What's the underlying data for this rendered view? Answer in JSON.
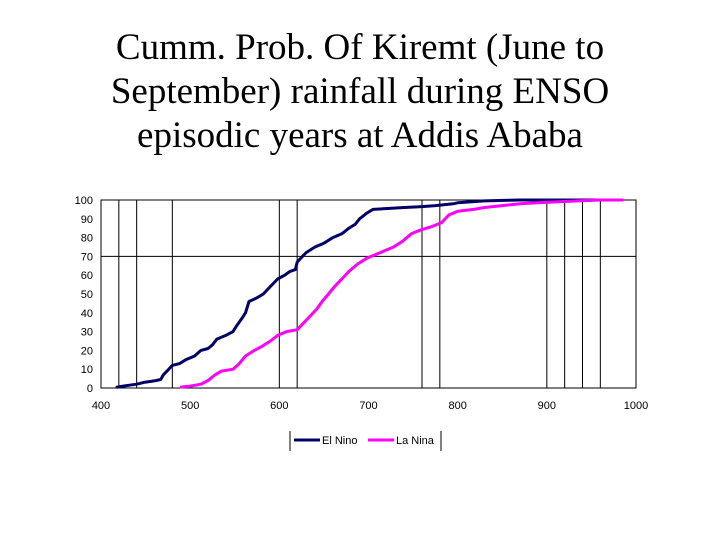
{
  "slide": {
    "title_lines": [
      "Cumm. Prob. Of Kiremt (June to",
      "September) rainfall during ENSO",
      "episodic years at Addis Ababa"
    ]
  },
  "chart_data": {
    "type": "line",
    "title": "Cumm. Prob. Of Kiremt (June to September) rainfall during ENSO episodic years at Addis Ababa",
    "xlabel": "",
    "ylabel": "",
    "xlim": [
      400,
      1000
    ],
    "ylim": [
      0,
      100
    ],
    "x_ticks": [
      400,
      500,
      600,
      700,
      800,
      900,
      1000
    ],
    "y_ticks": [
      0,
      10,
      20,
      30,
      40,
      50,
      60,
      70,
      80,
      90,
      100
    ],
    "grid_vertical_x": [
      420,
      440,
      480,
      600,
      620,
      760,
      780,
      900,
      920,
      940,
      960
    ],
    "grid_horizontal_y": [
      70
    ],
    "legend_position": "bottom",
    "series": [
      {
        "name": "El Nino",
        "color": "#000066",
        "points": [
          [
            418,
            0.5
          ],
          [
            425,
            1
          ],
          [
            432,
            1.5
          ],
          [
            440,
            2
          ],
          [
            448,
            3
          ],
          [
            456,
            3.5
          ],
          [
            462,
            4
          ],
          [
            467,
            4.5
          ],
          [
            470,
            7
          ],
          [
            474,
            9
          ],
          [
            480,
            12
          ],
          [
            488,
            13
          ],
          [
            495,
            15
          ],
          [
            505,
            17
          ],
          [
            512,
            20
          ],
          [
            520,
            21
          ],
          [
            525,
            23
          ],
          [
            530,
            26
          ],
          [
            540,
            28
          ],
          [
            548,
            30
          ],
          [
            552,
            33
          ],
          [
            558,
            37
          ],
          [
            562,
            40
          ],
          [
            566,
            46
          ],
          [
            575,
            48
          ],
          [
            582,
            50
          ],
          [
            590,
            54
          ],
          [
            598,
            58
          ],
          [
            606,
            60
          ],
          [
            612,
            62
          ],
          [
            618,
            63
          ],
          [
            620,
            67
          ],
          [
            630,
            72
          ],
          [
            640,
            75
          ],
          [
            650,
            77
          ],
          [
            660,
            80
          ],
          [
            670,
            82
          ],
          [
            678,
            85
          ],
          [
            685,
            87
          ],
          [
            690,
            90
          ],
          [
            698,
            93
          ],
          [
            705,
            95
          ],
          [
            740,
            96
          ],
          [
            760,
            96.5
          ],
          [
            775,
            97
          ],
          [
            795,
            98
          ],
          [
            800,
            98.5
          ],
          [
            830,
            99.5
          ],
          [
            870,
            100
          ],
          [
            980,
            100
          ]
        ]
      },
      {
        "name": "La Nina",
        "color": "#ff00ff",
        "points": [
          [
            490,
            0.5
          ],
          [
            500,
            1
          ],
          [
            512,
            2
          ],
          [
            520,
            4
          ],
          [
            528,
            7
          ],
          [
            535,
            9
          ],
          [
            548,
            10
          ],
          [
            555,
            13
          ],
          [
            562,
            17
          ],
          [
            572,
            20
          ],
          [
            580,
            22
          ],
          [
            590,
            25
          ],
          [
            598,
            28
          ],
          [
            608,
            30
          ],
          [
            620,
            31
          ],
          [
            628,
            35
          ],
          [
            636,
            39
          ],
          [
            642,
            42
          ],
          [
            648,
            46
          ],
          [
            655,
            50
          ],
          [
            662,
            54
          ],
          [
            670,
            58
          ],
          [
            678,
            62
          ],
          [
            688,
            66
          ],
          [
            698,
            69
          ],
          [
            708,
            71
          ],
          [
            718,
            73
          ],
          [
            728,
            75
          ],
          [
            738,
            78
          ],
          [
            748,
            82
          ],
          [
            758,
            84
          ],
          [
            772,
            86
          ],
          [
            782,
            88
          ],
          [
            790,
            92
          ],
          [
            800,
            94
          ],
          [
            818,
            95
          ],
          [
            830,
            96
          ],
          [
            850,
            97
          ],
          [
            870,
            98
          ],
          [
            890,
            98.5
          ],
          [
            910,
            99
          ],
          [
            935,
            99.5
          ],
          [
            960,
            100
          ],
          [
            985,
            100
          ]
        ]
      }
    ]
  }
}
